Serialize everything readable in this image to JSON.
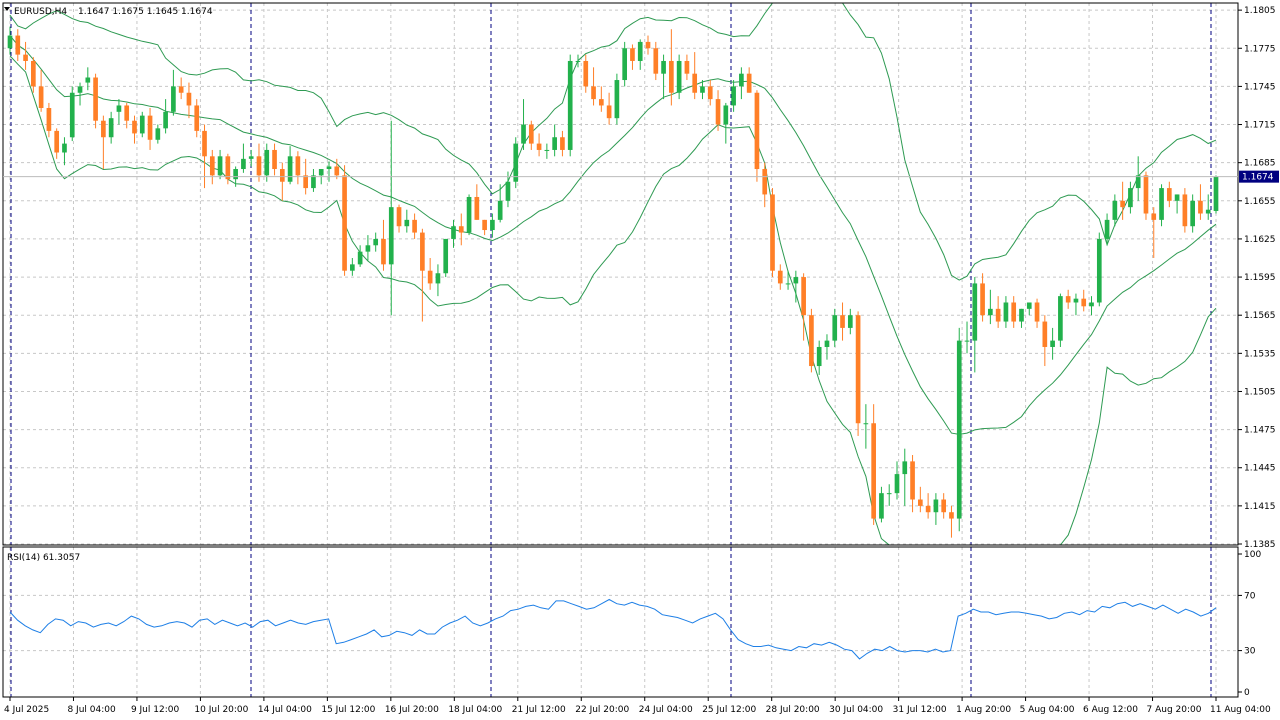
{
  "header": {
    "symbol_label": "EURUSD,H4",
    "ohlc": "1.1647 1.1675 1.1645 1.1674",
    "rsi_label": "RSI(14) 61.3057"
  },
  "price_axis": {
    "ticks": [
      "1.1805",
      "1.1775",
      "1.1745",
      "1.1715",
      "1.1685",
      "1.1655",
      "1.1625",
      "1.1595",
      "1.1565",
      "1.1535",
      "1.1505",
      "1.1475",
      "1.1445",
      "1.1415",
      "1.1385"
    ],
    "current_price": "1.1674"
  },
  "rsi_axis": {
    "ticks": [
      "100",
      "70",
      "30",
      "0"
    ]
  },
  "time_axis": {
    "ticks": [
      "4 Jul 2025",
      "8 Jul 04:00",
      "9 Jul 12:00",
      "10 Jul 20:00",
      "14 Jul 04:00",
      "15 Jul 12:00",
      "16 Jul 20:00",
      "18 Jul 04:00",
      "21 Jul 12:00",
      "22 Jul 20:00",
      "24 Jul 04:00",
      "25 Jul 12:00",
      "28 Jul 20:00",
      "30 Jul 04:00",
      "31 Jul 12:00",
      "1 Aug 20:00",
      "5 Aug 04:00",
      "6 Aug 12:00",
      "7 Aug 20:00",
      "11 Aug 04:00"
    ]
  },
  "colors": {
    "bull": "#22b14c",
    "bear": "#ff7f27",
    "band": "#2e9a52",
    "rsi_line": "#1e7fe6",
    "grid": "#c8c8c8",
    "separator": "#000080",
    "price_tag_bg": "#000080"
  },
  "chart_data": [
    {
      "type": "candlestick",
      "symbol": "EURUSD",
      "timeframe": "H4",
      "ylim": [
        1.1385,
        1.1805
      ],
      "indicator": "Bollinger Bands",
      "candles_ohlc": [
        [
          1.1775,
          1.1792,
          1.177,
          1.1785
        ],
        [
          1.1785,
          1.179,
          1.1765,
          1.177
        ],
        [
          1.177,
          1.178,
          1.1758,
          1.1765
        ],
        [
          1.1765,
          1.1768,
          1.174,
          1.1745
        ],
        [
          1.1745,
          1.1758,
          1.1725,
          1.1728
        ],
        [
          1.1728,
          1.1732,
          1.1705,
          1.171
        ],
        [
          1.171,
          1.1712,
          1.1688,
          1.1693
        ],
        [
          1.1693,
          1.1705,
          1.1683,
          1.17
        ],
        [
          1.1705,
          1.1745,
          1.1702,
          1.174
        ],
        [
          1.174,
          1.1748,
          1.173,
          1.1745
        ],
        [
          1.1748,
          1.176,
          1.1742,
          1.1752
        ],
        [
          1.1752,
          1.1755,
          1.1712,
          1.1718
        ],
        [
          1.1718,
          1.1722,
          1.168,
          1.1705
        ],
        [
          1.1705,
          1.1725,
          1.17,
          1.172
        ],
        [
          1.1725,
          1.1735,
          1.1715,
          1.173
        ],
        [
          1.173,
          1.1732,
          1.1712,
          1.1718
        ],
        [
          1.1718,
          1.1722,
          1.17,
          1.1708
        ],
        [
          1.1708,
          1.1725,
          1.1705,
          1.1722
        ],
        [
          1.1722,
          1.1728,
          1.1695,
          1.1703
        ],
        [
          1.1703,
          1.1715,
          1.17,
          1.1712
        ],
        [
          1.1712,
          1.1735,
          1.1708,
          1.1725
        ],
        [
          1.1725,
          1.1758,
          1.1722,
          1.1745
        ],
        [
          1.1745,
          1.1752,
          1.1735,
          1.174
        ],
        [
          1.174,
          1.1748,
          1.172,
          1.173
        ],
        [
          1.173,
          1.1735,
          1.1705,
          1.171
        ],
        [
          1.171,
          1.1715,
          1.1665,
          1.169
        ],
        [
          1.169,
          1.1695,
          1.1668,
          1.1675
        ],
        [
          1.1675,
          1.1695,
          1.1672,
          1.169
        ],
        [
          1.169,
          1.1692,
          1.1668,
          1.1672
        ],
        [
          1.1672,
          1.1682,
          1.1666,
          1.168
        ],
        [
          1.168,
          1.17,
          1.1677,
          1.1688
        ],
        [
          1.1688,
          1.1695,
          1.1682,
          1.169
        ],
        [
          1.169,
          1.17,
          1.167,
          1.1675
        ],
        [
          1.1675,
          1.17,
          1.167,
          1.1695
        ],
        [
          1.1695,
          1.17,
          1.1675,
          1.168
        ],
        [
          1.168,
          1.1685,
          1.1655,
          1.167
        ],
        [
          1.167,
          1.1698,
          1.1668,
          1.169
        ],
        [
          1.169,
          1.1694,
          1.1668,
          1.1675
        ],
        [
          1.1675,
          1.1688,
          1.166,
          1.1665
        ],
        [
          1.1665,
          1.168,
          1.1662,
          1.1675
        ],
        [
          1.1675,
          1.168,
          1.1668,
          1.168
        ],
        [
          1.168,
          1.1686,
          1.167,
          1.1682
        ],
        [
          1.1682,
          1.1688,
          1.1672,
          1.1675
        ],
        [
          1.1675,
          1.1683,
          1.1596,
          1.16
        ],
        [
          1.16,
          1.161,
          1.1596,
          1.1605
        ],
        [
          1.1605,
          1.162,
          1.1603,
          1.1615
        ],
        [
          1.1615,
          1.1628,
          1.1608,
          1.162
        ],
        [
          1.162,
          1.163,
          1.1615,
          1.1625
        ],
        [
          1.1625,
          1.164,
          1.16,
          1.1605
        ],
        [
          1.1605,
          1.1718,
          1.1565,
          1.165
        ],
        [
          1.165,
          1.1652,
          1.163,
          1.1635
        ],
        [
          1.1635,
          1.1648,
          1.163,
          1.164
        ],
        [
          1.164,
          1.1645,
          1.1625,
          1.163
        ],
        [
          1.163,
          1.1633,
          1.156,
          1.16
        ],
        [
          1.16,
          1.161,
          1.1585,
          1.159
        ],
        [
          1.159,
          1.1605,
          1.158,
          1.1598
        ],
        [
          1.1598,
          1.1625,
          1.1595,
          1.1625
        ],
        [
          1.1625,
          1.164,
          1.1618,
          1.1635
        ],
        [
          1.1635,
          1.1645,
          1.162,
          1.163
        ],
        [
          1.163,
          1.166,
          1.1628,
          1.1658
        ],
        [
          1.1658,
          1.1668,
          1.164,
          1.164
        ],
        [
          1.164,
          1.164,
          1.1628,
          1.1632
        ],
        [
          1.1632,
          1.1645,
          1.1626,
          1.164
        ],
        [
          1.164,
          1.1668,
          1.1638,
          1.1655
        ],
        [
          1.1655,
          1.1678,
          1.165,
          1.167
        ],
        [
          1.167,
          1.1705,
          1.1665,
          1.17
        ],
        [
          1.17,
          1.1735,
          1.1695,
          1.1715
        ],
        [
          1.1715,
          1.1718,
          1.1695,
          1.17
        ],
        [
          1.17,
          1.1708,
          1.169,
          1.1695
        ],
        [
          1.1695,
          1.17,
          1.1688,
          1.1695
        ],
        [
          1.1695,
          1.1715,
          1.169,
          1.1705
        ],
        [
          1.1705,
          1.171,
          1.169,
          1.1695
        ],
        [
          1.1695,
          1.177,
          1.169,
          1.1765
        ],
        [
          1.1765,
          1.177,
          1.176,
          1.1765
        ],
        [
          1.1765,
          1.177,
          1.174,
          1.1745
        ],
        [
          1.1745,
          1.176,
          1.173,
          1.1735
        ],
        [
          1.1735,
          1.1745,
          1.1725,
          1.173
        ],
        [
          1.173,
          1.174,
          1.1715,
          1.172
        ],
        [
          1.172,
          1.1755,
          1.1715,
          1.175
        ],
        [
          1.175,
          1.178,
          1.1745,
          1.1775
        ],
        [
          1.1775,
          1.1778,
          1.1758,
          1.1765
        ],
        [
          1.1765,
          1.1782,
          1.1758,
          1.178
        ],
        [
          1.178,
          1.1785,
          1.177,
          1.1775
        ],
        [
          1.1775,
          1.178,
          1.175,
          1.1755
        ],
        [
          1.1755,
          1.177,
          1.1735,
          1.1765
        ],
        [
          1.1765,
          1.179,
          1.173,
          1.174
        ],
        [
          1.174,
          1.177,
          1.1735,
          1.1765
        ],
        [
          1.1765,
          1.177,
          1.175,
          1.1755
        ],
        [
          1.1755,
          1.1772,
          1.1735,
          1.174
        ],
        [
          1.174,
          1.175,
          1.1735,
          1.1745
        ],
        [
          1.1745,
          1.175,
          1.173,
          1.1735
        ],
        [
          1.1735,
          1.1742,
          1.171,
          1.1715
        ],
        [
          1.1715,
          1.1732,
          1.17,
          1.173
        ],
        [
          1.173,
          1.175,
          1.1725,
          1.1745
        ],
        [
          1.1745,
          1.176,
          1.1735,
          1.1755
        ],
        [
          1.1755,
          1.176,
          1.174,
          1.174
        ],
        [
          1.174,
          1.1742,
          1.167,
          1.168
        ],
        [
          1.168,
          1.1685,
          1.165,
          1.166
        ],
        [
          1.166,
          1.1665,
          1.1595,
          1.16
        ],
        [
          1.16,
          1.1605,
          1.1585,
          1.159
        ],
        [
          1.159,
          1.16,
          1.1585,
          1.159
        ],
        [
          1.159,
          1.16,
          1.1575,
          1.1595
        ],
        [
          1.1595,
          1.1598,
          1.1545,
          1.1565
        ],
        [
          1.1565,
          1.157,
          1.152,
          1.1525
        ],
        [
          1.1525,
          1.1545,
          1.1518,
          1.154
        ],
        [
          1.154,
          1.155,
          1.153,
          1.1545
        ],
        [
          1.1545,
          1.157,
          1.154,
          1.1565
        ],
        [
          1.1565,
          1.1575,
          1.1545,
          1.1555
        ],
        [
          1.1555,
          1.157,
          1.155,
          1.1565
        ],
        [
          1.1565,
          1.1568,
          1.147,
          1.148
        ],
        [
          1.148,
          1.1495,
          1.146,
          1.148
        ],
        [
          1.148,
          1.1495,
          1.14,
          1.1405
        ],
        [
          1.1405,
          1.143,
          1.1402,
          1.1425
        ],
        [
          1.1425,
          1.1432,
          1.1415,
          1.1425
        ],
        [
          1.1425,
          1.145,
          1.142,
          1.144
        ],
        [
          1.144,
          1.146,
          1.1415,
          1.145
        ],
        [
          1.145,
          1.1455,
          1.141,
          1.142
        ],
        [
          1.142,
          1.143,
          1.141,
          1.1415
        ],
        [
          1.1415,
          1.1425,
          1.1405,
          1.141
        ],
        [
          1.141,
          1.1425,
          1.14,
          1.142
        ],
        [
          1.142,
          1.1425,
          1.1405,
          1.141
        ],
        [
          1.141,
          1.1415,
          1.139,
          1.1405
        ],
        [
          1.1405,
          1.1555,
          1.1395,
          1.1545
        ],
        [
          1.1545,
          1.156,
          1.1535,
          1.1545
        ],
        [
          1.1545,
          1.1595,
          1.152,
          1.159
        ],
        [
          1.159,
          1.1598,
          1.156,
          1.1565
        ],
        [
          1.1565,
          1.1585,
          1.1558,
          1.157
        ],
        [
          1.157,
          1.158,
          1.1555,
          1.156
        ],
        [
          1.156,
          1.158,
          1.1555,
          1.1575
        ],
        [
          1.1575,
          1.158,
          1.1555,
          1.156
        ],
        [
          1.156,
          1.157,
          1.1555,
          1.157
        ],
        [
          1.157,
          1.1575,
          1.1565,
          1.1575
        ],
        [
          1.1575,
          1.1578,
          1.1555,
          1.156
        ],
        [
          1.156,
          1.1565,
          1.1525,
          1.154
        ],
        [
          1.154,
          1.1555,
          1.153,
          1.1545
        ],
        [
          1.1545,
          1.1582,
          1.154,
          1.158
        ],
        [
          1.158,
          1.1585,
          1.157,
          1.1575
        ],
        [
          1.1575,
          1.1582,
          1.1565,
          1.1578
        ],
        [
          1.1578,
          1.1585,
          1.1568,
          1.1572
        ],
        [
          1.1572,
          1.158,
          1.1565,
          1.1575
        ],
        [
          1.1575,
          1.163,
          1.1572,
          1.1625
        ],
        [
          1.1625,
          1.1645,
          1.162,
          1.164
        ],
        [
          1.164,
          1.166,
          1.1635,
          1.1655
        ],
        [
          1.1655,
          1.167,
          1.164,
          1.165
        ],
        [
          1.165,
          1.167,
          1.1645,
          1.1665
        ],
        [
          1.1665,
          1.169,
          1.1655,
          1.1675
        ],
        [
          1.1675,
          1.1678,
          1.164,
          1.1645
        ],
        [
          1.1645,
          1.165,
          1.161,
          1.164
        ],
        [
          1.164,
          1.1668,
          1.1635,
          1.1665
        ],
        [
          1.1665,
          1.167,
          1.165,
          1.1655
        ],
        [
          1.1655,
          1.166,
          1.1645,
          1.166
        ],
        [
          1.166,
          1.1665,
          1.163,
          1.1635
        ],
        [
          1.1635,
          1.166,
          1.163,
          1.1655
        ],
        [
          1.1655,
          1.1668,
          1.164,
          1.1645
        ],
        [
          1.1645,
          1.166,
          1.164,
          1.1648
        ],
        [
          1.1647,
          1.1675,
          1.1645,
          1.1674
        ]
      ]
    },
    {
      "type": "line",
      "name": "RSI(14)",
      "ylim": [
        0,
        100
      ],
      "levels": [
        70,
        30
      ],
      "last_value": 61.3057,
      "values": [
        58,
        52,
        48,
        45,
        43,
        49,
        53,
        52,
        48,
        51,
        50,
        47,
        49,
        50,
        48,
        51,
        55,
        53,
        49,
        47,
        48,
        50,
        51,
        50,
        47,
        52,
        53,
        49,
        52,
        50,
        48,
        50,
        47,
        51,
        52,
        48,
        50,
        52,
        50,
        49,
        51,
        52,
        53,
        35,
        36,
        38,
        40,
        42,
        45,
        40,
        41,
        44,
        43,
        41,
        45,
        42,
        42,
        47,
        50,
        52,
        55,
        50,
        48,
        50,
        53,
        55,
        59,
        60,
        62,
        63,
        61,
        60,
        66,
        66,
        64,
        62,
        60,
        61,
        64,
        67,
        64,
        63,
        65,
        63,
        62,
        60,
        56,
        55,
        54,
        52,
        50,
        53,
        55,
        57,
        53,
        45,
        38,
        35,
        33,
        33,
        34,
        32,
        31,
        30,
        33,
        32,
        35,
        34,
        36,
        34,
        31,
        30,
        24,
        28,
        31,
        30,
        33,
        30,
        29,
        30,
        30,
        29,
        31,
        29,
        30,
        55,
        57,
        60,
        58,
        58,
        56,
        57,
        58,
        58,
        57,
        56,
        55,
        53,
        54,
        57,
        58,
        56,
        59,
        58,
        62,
        61,
        64,
        65,
        62,
        64,
        62,
        60,
        63,
        60,
        57,
        60,
        58,
        55,
        57,
        61
      ]
    }
  ]
}
